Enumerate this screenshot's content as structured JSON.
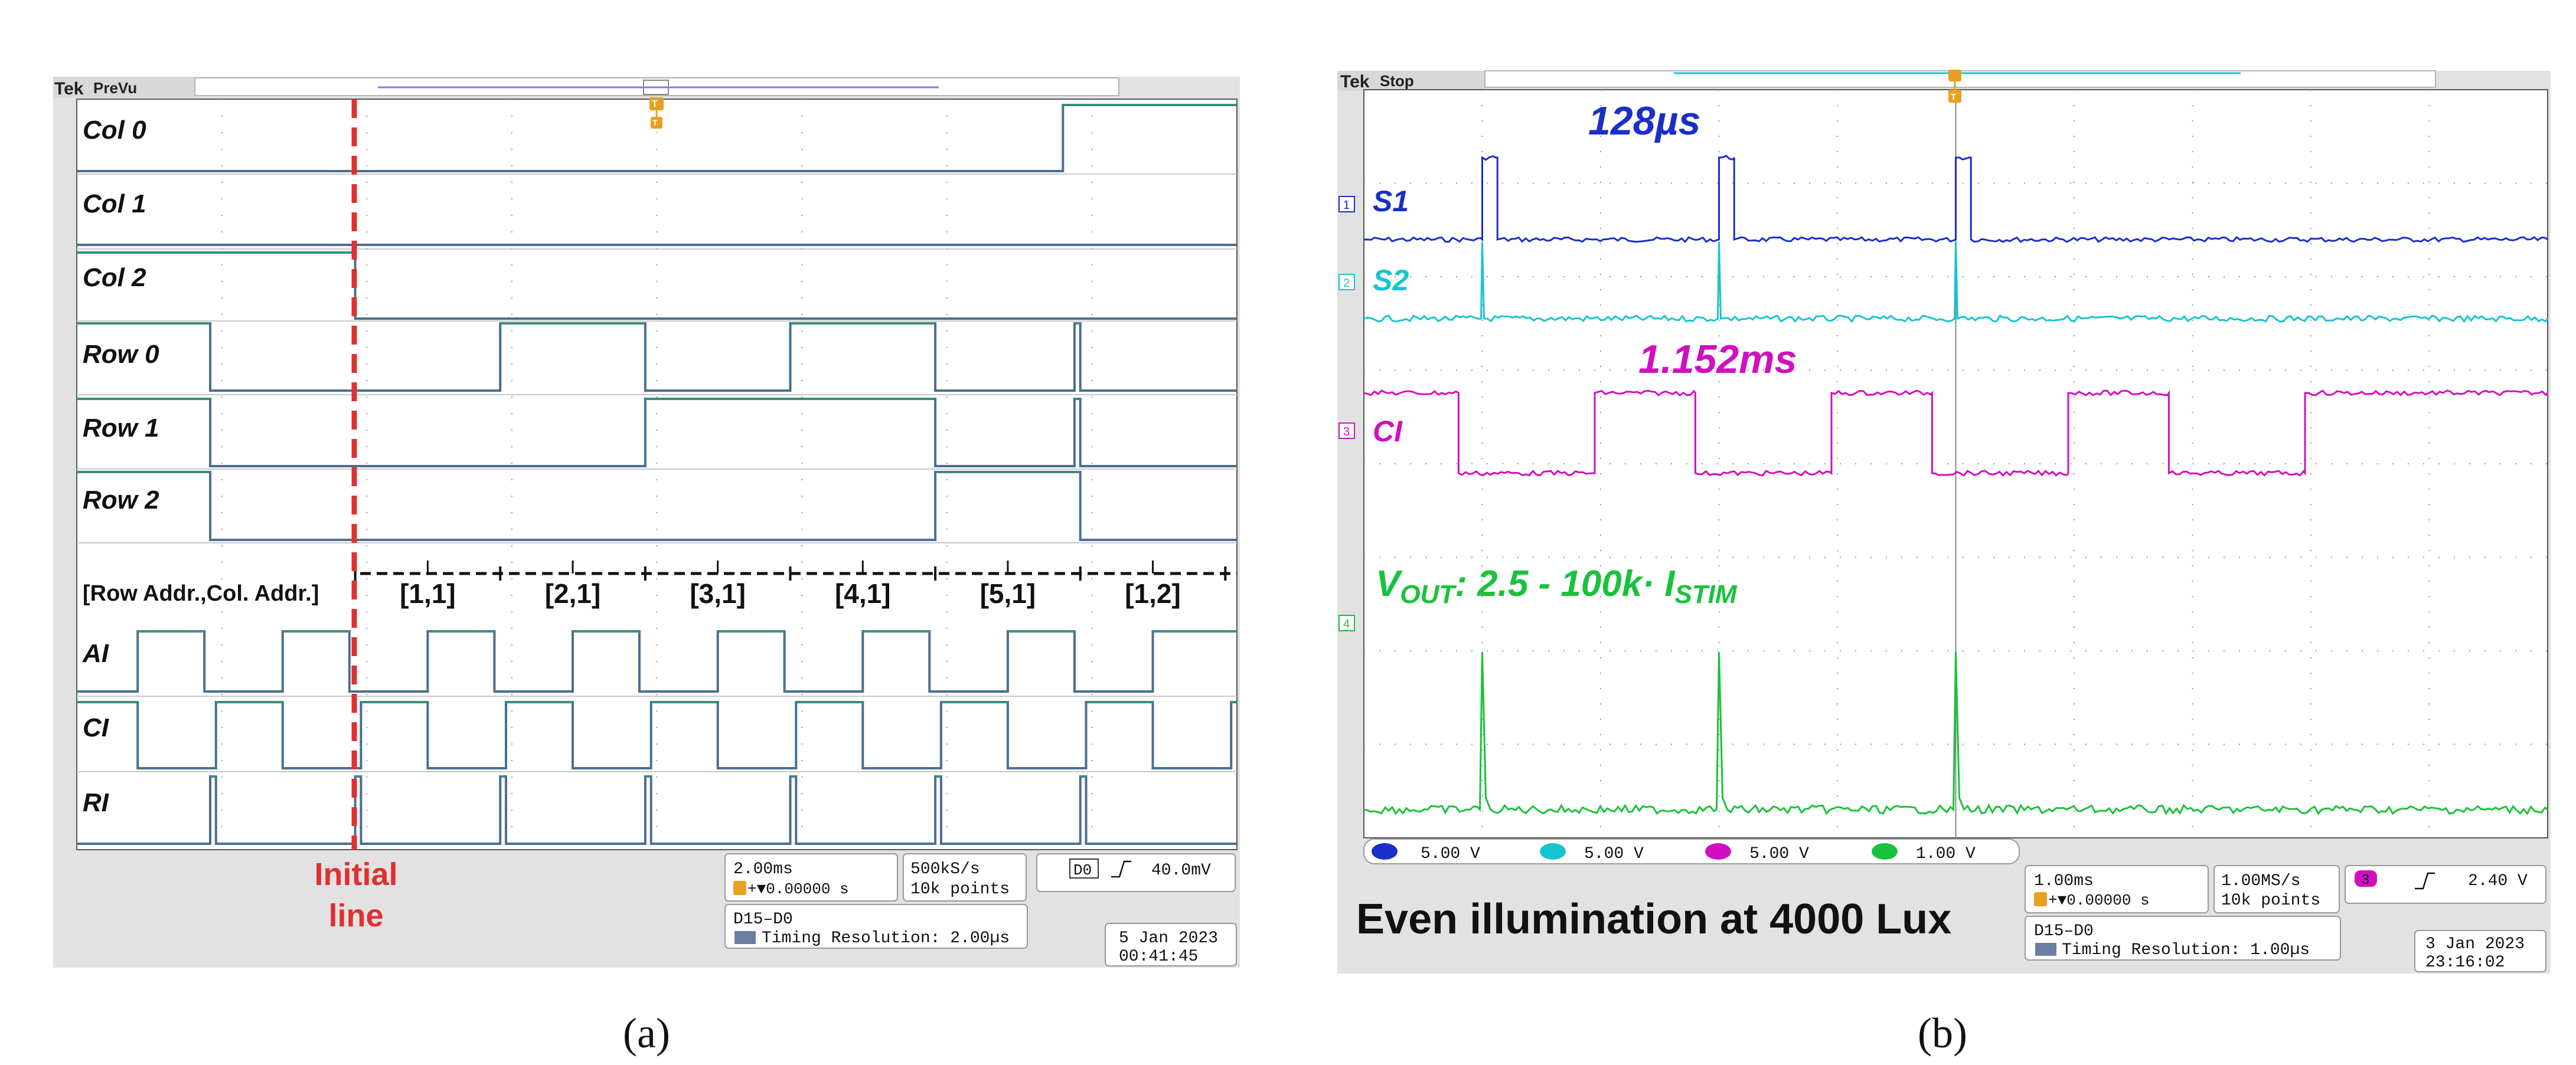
{
  "colors": {
    "screen_bg": "#ffffff",
    "panel_bg": "#e2e2e2",
    "grid": "#9a9a9a",
    "logic_trace": "#4a6f8f",
    "logic_trace_hi": "#2aa36a",
    "initial_line": "#e03030",
    "ch1": "#1a2fc8",
    "ch2": "#18c4d0",
    "ch3": "#d10fc0",
    "ch4": "#19c23a",
    "cursor": "#e8a020"
  },
  "panel_a": {
    "caption": "(a)",
    "header": {
      "brand": "Tek",
      "mode": "PreVu"
    },
    "channels": [
      "Col 0",
      "Col 1",
      "Col 2",
      "Row 0",
      "Row 1",
      "Row 2"
    ],
    "address_header": "[Row Addr.,Col. Addr.]",
    "address_labels": [
      "[1,1]",
      "[2,1]",
      "[3,1]",
      "[4,1]",
      "[5,1]",
      "[1,2]"
    ],
    "clock_channels": [
      "AI",
      "CI",
      "RI"
    ],
    "initial_line_label": [
      "Initial",
      "line"
    ],
    "readouts": {
      "timebase": "2.00ms",
      "trigger_pos": "+▼0.00000 s",
      "sample_rate": "500kS/s",
      "record_length": "10k points",
      "trigger_source": "D0",
      "trigger_level": "40.0mV",
      "bus": "D15–D0",
      "timing": "Timing Resolution: 2.00µs",
      "date": "5 Jan  2023",
      "time": "00:41:45"
    }
  },
  "panel_b": {
    "caption": "(b)",
    "header": {
      "brand": "Tek",
      "mode": "Stop"
    },
    "annotations": {
      "pulse_width": "128µs",
      "ci_width": "1.152ms",
      "vout_formula": "V_OUT: 2.5 - 100k· I_STIM",
      "vout_main": "V",
      "vout_sub1": "OUT",
      "vout_mid": ": 2.5 - 100k· I",
      "vout_sub2": "STIM"
    },
    "channel_labels": [
      "S1",
      "S2",
      "CI"
    ],
    "channel_markers": [
      "1",
      "2",
      "3",
      "4"
    ],
    "scales": [
      "5.00 V",
      "5.00 V",
      "5.00 V",
      "1.00 V"
    ],
    "illumination_note": "Even illumination at 4000 Lux",
    "readouts": {
      "timebase": "1.00ms",
      "trigger_pos": "+▼0.00000 s",
      "sample_rate": "1.00MS/s",
      "record_length": "10k points",
      "trigger_channel": "3",
      "trigger_level": "2.40 V",
      "bus": "D15–D0",
      "timing": "Timing Resolution: 1.00µs",
      "date": "3 Jan  2023",
      "time": "23:16:02"
    }
  },
  "chart_data": [
    {
      "type": "line",
      "title": "",
      "x_unit": "ms",
      "time_per_division": 2.0,
      "xlim": [
        0,
        20
      ],
      "initial_line_time_ms": 4.8,
      "series": [
        {
          "name": "Col 0",
          "x": [
            0,
            17,
            17,
            20
          ],
          "y": [
            0,
            0,
            1,
            1
          ]
        },
        {
          "name": "Col 1",
          "x": [
            0,
            20
          ],
          "y": [
            0,
            0
          ]
        },
        {
          "name": "Col 2",
          "x": [
            0,
            4.8,
            4.8,
            20
          ],
          "y": [
            1,
            1,
            0,
            0
          ]
        },
        {
          "name": "Row 0",
          "x": [
            0,
            2.3,
            2.3,
            7.3,
            7.3,
            9.8,
            9.8,
            12.3,
            12.3,
            14.8,
            14.8,
            17.2,
            17.2,
            17.3,
            17.3,
            20
          ],
          "y": [
            1,
            1,
            0,
            0,
            1,
            1,
            0,
            0,
            1,
            1,
            0,
            0,
            1,
            1,
            0,
            0
          ]
        },
        {
          "name": "Row 1",
          "x": [
            0,
            2.3,
            2.3,
            9.8,
            9.8,
            14.8,
            14.8,
            17.2,
            17.2,
            17.3,
            17.3,
            20
          ],
          "y": [
            1,
            1,
            0,
            0,
            1,
            1,
            0,
            0,
            1,
            1,
            0,
            0
          ]
        },
        {
          "name": "Row 2",
          "x": [
            0,
            2.3,
            2.3,
            14.8,
            14.8,
            17.3,
            17.3,
            20
          ],
          "y": [
            1,
            1,
            0,
            0,
            1,
            1,
            0,
            0
          ]
        },
        {
          "name": "AI",
          "x": [
            0,
            1.05,
            1.05,
            2.2,
            2.2,
            3.55,
            3.55,
            4.7,
            4.7,
            6.05,
            6.05,
            7.2,
            7.2,
            8.55,
            8.55,
            9.7,
            9.7,
            11.05,
            11.05,
            12.2,
            12.2,
            13.55,
            13.55,
            14.7,
            14.7,
            16.05,
            16.05,
            17.2,
            17.2,
            18.55,
            18.55,
            20
          ],
          "y": [
            0,
            0,
            1,
            1,
            0,
            0,
            1,
            1,
            0,
            0,
            1,
            1,
            0,
            0,
            1,
            1,
            0,
            0,
            1,
            1,
            0,
            0,
            1,
            1,
            0,
            0,
            1,
            1,
            0,
            0,
            1,
            1
          ]
        },
        {
          "name": "CI",
          "x": [
            0,
            1.05,
            1.05,
            2.4,
            2.4,
            3.55,
            3.55,
            4.9,
            4.9,
            6.05,
            6.05,
            7.4,
            7.4,
            8.55,
            8.55,
            9.9,
            9.9,
            11.05,
            11.05,
            12.4,
            12.4,
            13.55,
            13.55,
            14.9,
            14.9,
            16.05,
            16.05,
            17.4,
            17.4,
            18.55,
            18.55,
            19.9,
            19.9,
            20
          ],
          "y": [
            1,
            1,
            0,
            0,
            1,
            1,
            0,
            0,
            1,
            1,
            0,
            0,
            1,
            1,
            0,
            0,
            1,
            1,
            0,
            0,
            1,
            1,
            0,
            0,
            1,
            1,
            0,
            0,
            1,
            1,
            0,
            0,
            1,
            1
          ]
        },
        {
          "name": "RI",
          "x": [
            0,
            2.3,
            2.3,
            2.4,
            2.4,
            4.8,
            4.8,
            4.9,
            4.9,
            7.3,
            7.3,
            7.4,
            7.4,
            9.8,
            9.8,
            9.9,
            9.9,
            12.3,
            12.3,
            12.4,
            12.4,
            14.8,
            14.8,
            14.9,
            14.9,
            17.3,
            17.3,
            17.4,
            17.4,
            20
          ],
          "y": [
            0,
            0,
            1,
            1,
            0,
            0,
            1,
            1,
            0,
            0,
            1,
            1,
            0,
            0,
            1,
            1,
            0,
            0,
            1,
            1,
            0,
            0,
            1,
            1,
            0,
            0,
            1,
            1,
            0,
            0
          ]
        }
      ]
    },
    {
      "type": "line",
      "title": "",
      "x_unit": "ms",
      "time_per_division": 1.0,
      "xlim": [
        0,
        10
      ],
      "series": [
        {
          "name": "S1",
          "pulse_starts_ms": [
            1.0,
            3.0,
            5.0
          ],
          "pulse_width_ms": 0.128,
          "y_low": 0,
          "y_high": 1
        },
        {
          "name": "S2",
          "spike_times_ms": [
            1.0,
            3.0,
            5.0
          ]
        },
        {
          "name": "CI",
          "x": [
            0,
            0.8,
            0.8,
            1.95,
            1.95,
            2.8,
            2.8,
            3.95,
            3.95,
            4.8,
            4.8,
            5.95,
            5.95,
            6.8,
            6.8,
            7.95,
            7.95,
            10
          ],
          "y": [
            1,
            1,
            0,
            0,
            1,
            1,
            0,
            0,
            1,
            1,
            0,
            0,
            1,
            1,
            0,
            0,
            1,
            1
          ]
        },
        {
          "name": "VOUT",
          "spike_times_ms": [
            1.0,
            3.0,
            5.0
          ]
        }
      ]
    }
  ]
}
